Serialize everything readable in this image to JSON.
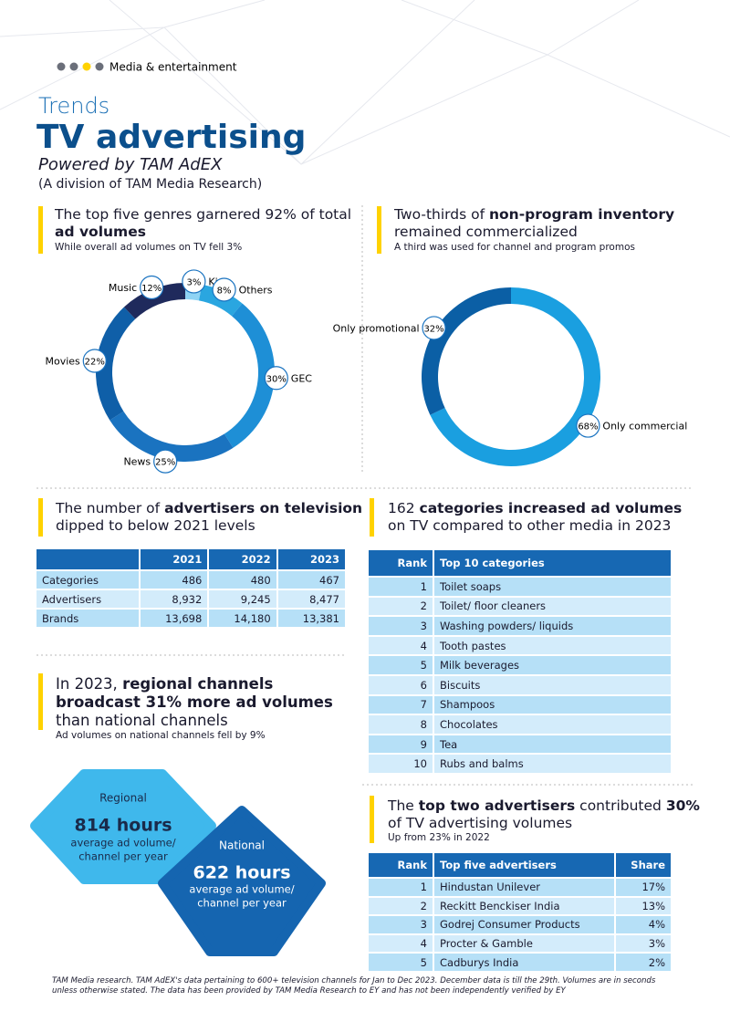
{
  "header": {
    "section": "Media & entertainment",
    "kicker": "Trends",
    "title": "TV advertising",
    "subtitle": "Powered by TAM AdEX",
    "subtitle2": "(A division of TAM Media Research)"
  },
  "genres": {
    "heading": [
      "The top five genres garnered 92% of total",
      "ad volumes"
    ],
    "note": "While overall ad volumes on TV fell 3%"
  },
  "inventory": {
    "heading": [
      "Two-thirds of",
      "non-program inventory",
      "remained commercialized"
    ],
    "note": "A third was used for channel and program promos"
  },
  "chart_data": [
    {
      "type": "pie",
      "donut": true,
      "categories": [
        "Kids",
        "Others",
        "GEC",
        "News",
        "Movies",
        "Music"
      ],
      "values": [
        3,
        8,
        30,
        25,
        22,
        12
      ],
      "value_labels": [
        "3%",
        "8%",
        "30%",
        "25%",
        "22%",
        "12%"
      ],
      "colors": [
        "#8fd3f4",
        "#2aa6e0",
        "#1e8fd6",
        "#1a73c0",
        "#0f5fa8",
        "#1f2a5c"
      ]
    },
    {
      "type": "pie",
      "donut": true,
      "categories": [
        "Only commercial",
        "Only promotional"
      ],
      "values": [
        68,
        32
      ],
      "value_labels": [
        "68%",
        "32%"
      ],
      "colors": [
        "#1a9fe0",
        "#0b5fa5"
      ]
    }
  ],
  "advertisers": {
    "heading": [
      "The number of",
      "advertisers on television",
      "dipped to below 2021 levels"
    ],
    "table": {
      "columns": [
        "2021",
        "2022",
        "2023"
      ],
      "rows": [
        [
          "Categories",
          "486",
          "480",
          "467"
        ],
        [
          "Advertisers",
          "8,932",
          "9,245",
          "8,477"
        ],
        [
          "Brands",
          "13,698",
          "14,180",
          "13,381"
        ]
      ]
    }
  },
  "regional": {
    "heading": [
      "In 2023,",
      "regional channels",
      "broadcast 31% more ad volumes",
      "than national channels"
    ],
    "note": "Ad volumes on national channels fell by 9%",
    "shapes": [
      {
        "label": "Regional",
        "value": "814 hours",
        "desc": [
          "average ad volume/",
          "channel per year"
        ]
      },
      {
        "label": "National",
        "value": "622 hours",
        "desc": [
          "average ad volume/",
          "channel per year"
        ]
      }
    ]
  },
  "categories": {
    "heading": [
      "162",
      "categories increased ad volumes",
      "on TV compared to other media in 2023"
    ],
    "table": {
      "columns": [
        "Rank",
        "Top 10 categories"
      ],
      "rows": [
        [
          "1",
          "Toilet soaps"
        ],
        [
          "2",
          "Toilet/ floor cleaners"
        ],
        [
          "3",
          "Washing powders/ liquids"
        ],
        [
          "4",
          "Tooth pastes"
        ],
        [
          "5",
          "Milk beverages"
        ],
        [
          "6",
          "Biscuits"
        ],
        [
          "7",
          "Shampoos"
        ],
        [
          "8",
          "Chocolates"
        ],
        [
          "9",
          "Tea"
        ],
        [
          "10",
          "Rubs and balms"
        ]
      ]
    }
  },
  "top_advertisers": {
    "heading": [
      "The",
      "top two advertisers",
      "contributed",
      "30%",
      "of TV advertising volumes"
    ],
    "note": "Up from 23% in 2022",
    "table": {
      "columns": [
        "Rank",
        "Top five advertisers",
        "Share"
      ],
      "rows": [
        [
          "1",
          "Hindustan Unilever",
          "17%"
        ],
        [
          "2",
          "Reckitt Benckiser India",
          "13%"
        ],
        [
          "3",
          "Godrej Consumer Products",
          "4%"
        ],
        [
          "4",
          "Procter & Gamble",
          "3%"
        ],
        [
          "5",
          "Cadburys India",
          "2%"
        ]
      ]
    }
  },
  "footer": "TAM Media research. TAM AdEX's data pertaining to 600+ television channels for Jan to Dec 2023. December data is till the 29th. Volumes are in seconds unless otherwise stated. The data has been provided by TAM Media Research to EY and has not been independently verified by EY"
}
